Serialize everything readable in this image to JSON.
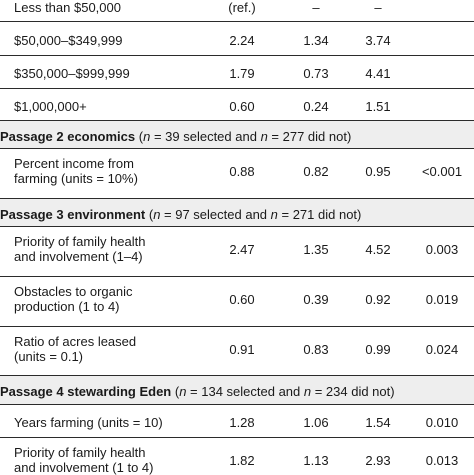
{
  "rows": [
    {
      "type": "data",
      "label": [
        "Less than $50,000"
      ],
      "v1": "(ref.)",
      "v2": "–",
      "v3": "–",
      "p": ""
    },
    {
      "type": "data",
      "label": [
        "$50,000–$349,999"
      ],
      "v1": "2.24",
      "v2": "1.34",
      "v3": "3.74",
      "p": ""
    },
    {
      "type": "data",
      "label": [
        "$350,000–$999,999"
      ],
      "v1": "1.79",
      "v2": "0.73",
      "v3": "4.41",
      "p": ""
    },
    {
      "type": "data",
      "label": [
        "$1,000,000+"
      ],
      "v1": "0.60",
      "v2": "0.24",
      "v3": "1.51",
      "p": ""
    },
    {
      "type": "section",
      "title": "Passage 2 economics",
      "note_pre": " (",
      "n1": "n",
      "note_mid": " = 39 selected and ",
      "n2": "n",
      "note_post": " = 277 did not)"
    },
    {
      "type": "data",
      "label": [
        "Percent income from",
        "farming (units = 10%)"
      ],
      "v1": "0.88",
      "v2": "0.82",
      "v3": "0.95",
      "p": "<0.001"
    },
    {
      "type": "section",
      "title": "Passage 3 environment",
      "note_pre": " (",
      "n1": "n",
      "note_mid": " = 97 selected and ",
      "n2": "n",
      "note_post": " = 271 did not)"
    },
    {
      "type": "data",
      "label": [
        "Priority of family health",
        "and involvement (1–4)"
      ],
      "v1": "2.47",
      "v2": "1.35",
      "v3": "4.52",
      "p": "0.003"
    },
    {
      "type": "data",
      "label": [
        "Obstacles to organic",
        "production (1 to 4)"
      ],
      "v1": "0.60",
      "v2": "0.39",
      "v3": "0.92",
      "p": "0.019"
    },
    {
      "type": "data",
      "label": [
        "Ratio of acres leased",
        "(units = 0.1)"
      ],
      "v1": "0.91",
      "v2": "0.83",
      "v3": "0.99",
      "p": "0.024"
    },
    {
      "type": "section",
      "title": "Passage 4 stewarding Eden",
      "note_pre": " (",
      "n1": "n",
      "note_mid": " = 134 selected and ",
      "n2": "n",
      "note_post": " = 234 did not)"
    },
    {
      "type": "data",
      "label": [
        "Years farming (units = 10)"
      ],
      "v1": "1.28",
      "v2": "1.06",
      "v3": "1.54",
      "p": "0.010"
    },
    {
      "type": "data",
      "label": [
        "Priority of family health",
        "and involvement (1 to 4)"
      ],
      "v1": "1.82",
      "v2": "1.13",
      "v3": "2.93",
      "p": "0.013"
    }
  ]
}
